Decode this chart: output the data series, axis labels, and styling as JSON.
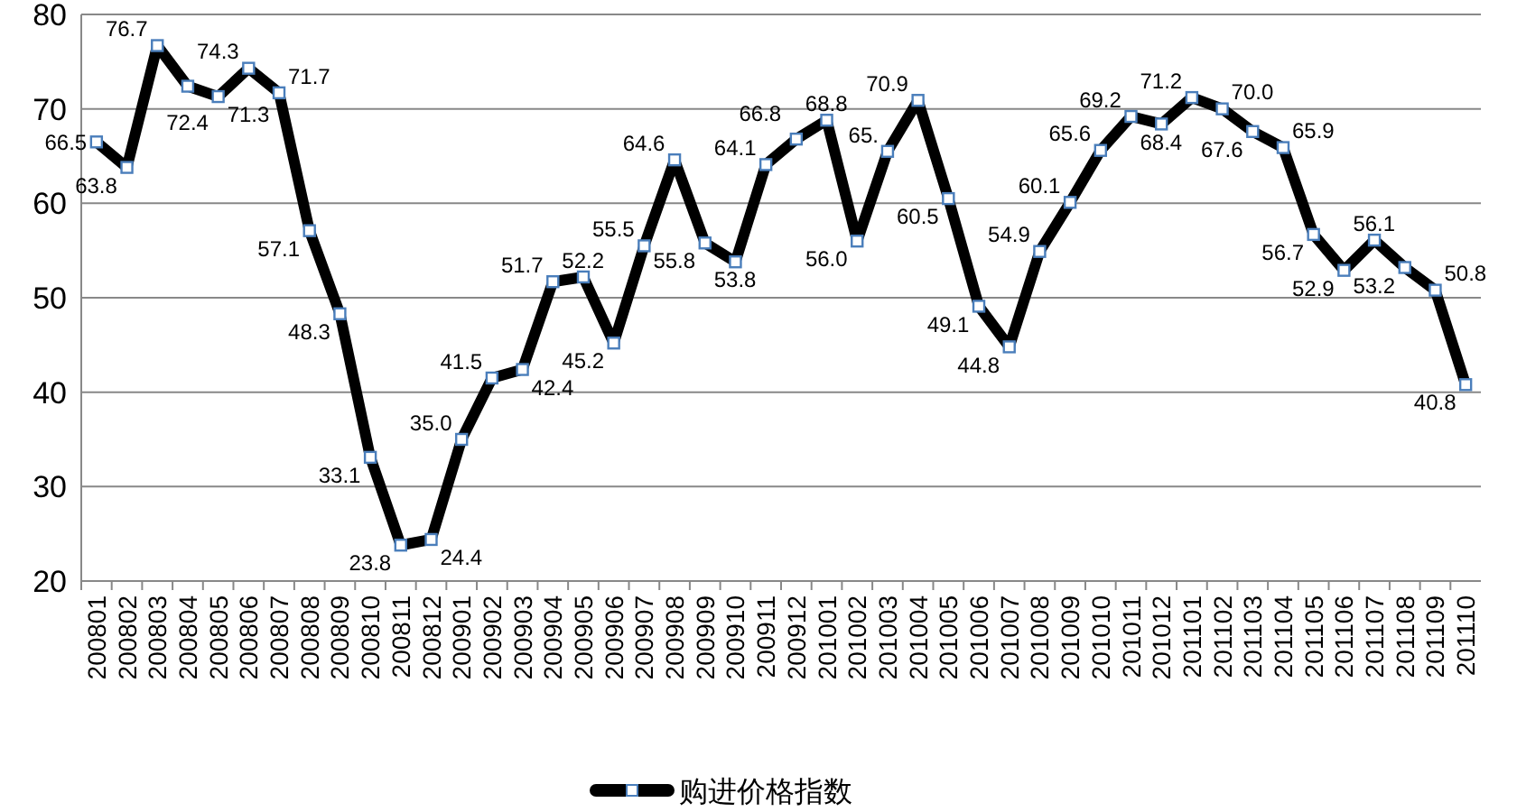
{
  "chart_data": {
    "type": "line",
    "categories": [
      "200801",
      "200802",
      "200803",
      "200804",
      "200805",
      "200806",
      "200807",
      "200808",
      "200809",
      "200810",
      "200811",
      "200812",
      "200901",
      "200902",
      "200903",
      "200904",
      "200905",
      "200906",
      "200907",
      "200908",
      "200909",
      "200910",
      "200911",
      "200912",
      "201001",
      "201002",
      "201003",
      "201004",
      "201005",
      "201006",
      "201007",
      "201008",
      "201009",
      "201010",
      "201011",
      "201012",
      "201101",
      "201102",
      "201103",
      "201104",
      "201105",
      "201106",
      "201107",
      "201108",
      "201109",
      "201110"
    ],
    "series": [
      {
        "name": "购进价格指数",
        "color": "#000000",
        "values": [
          66.5,
          63.8,
          76.7,
          72.4,
          71.3,
          74.3,
          71.7,
          57.1,
          48.3,
          33.1,
          23.8,
          24.4,
          35.0,
          41.5,
          42.4,
          51.7,
          52.2,
          45.2,
          55.5,
          64.6,
          55.8,
          53.8,
          64.1,
          66.8,
          68.8,
          56.0,
          65.5,
          70.9,
          60.5,
          49.1,
          44.8,
          54.9,
          60.1,
          65.6,
          69.2,
          68.4,
          71.2,
          70.0,
          67.6,
          65.9,
          56.7,
          52.9,
          56.1,
          53.2,
          50.8,
          40.8
        ],
        "value_labels": [
          "66.5",
          "63.8",
          "76.7",
          "72.4",
          "71.3",
          "74.3",
          "71.7",
          "57.1",
          "48.3",
          "33.1",
          "23.8",
          "24.4",
          "35.0",
          "41.5",
          "42.4",
          "51.7",
          "52.2",
          "45.2",
          "55.5",
          "64.6",
          "55.8",
          "53.8",
          "64.1",
          "66.8",
          "68.8",
          "56.0",
          "65.",
          "70.9",
          "60.5",
          "49.1",
          "44.8",
          "54.9",
          "60.1",
          "65.6",
          "69.2",
          "68.4",
          "71.2",
          "70.0",
          "67.6",
          "65.9",
          "56.7",
          "52.9",
          "56.1",
          "53.2",
          "50.8",
          "40.8"
        ]
      }
    ],
    "ylim": [
      20,
      80
    ],
    "yticks": [
      20,
      30,
      40,
      50,
      60,
      70,
      80
    ],
    "grid": "y",
    "marker": "square",
    "line_style": "solid",
    "legend": "bottom"
  }
}
